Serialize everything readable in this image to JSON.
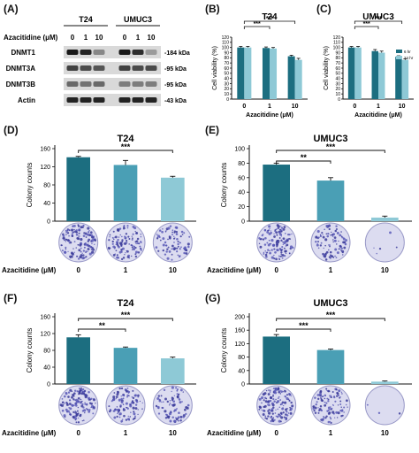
{
  "labels": {
    "a": "(A)",
    "b": "(B)",
    "c": "(C)",
    "d": "(D)",
    "e": "(E)",
    "f": "(F)",
    "g": "(G)"
  },
  "western": {
    "cell_lines": [
      "T24",
      "UMUC3"
    ],
    "dose_header": "Azacitidine (μM)",
    "doses": [
      "0",
      "1",
      "10",
      "0",
      "1",
      "10"
    ],
    "rows": [
      {
        "name": "DNMT1",
        "kda": "-184 kDa",
        "intensity": [
          0.95,
          0.9,
          0.4,
          0.95,
          0.85,
          0.3
        ]
      },
      {
        "name": "DNMT3A",
        "kda": "-95 kDa",
        "intensity": [
          0.75,
          0.7,
          0.65,
          0.75,
          0.7,
          0.7
        ]
      },
      {
        "name": "DNMT3B",
        "kda": "-95 kDa",
        "intensity": [
          0.55,
          0.5,
          0.55,
          0.45,
          0.45,
          0.45
        ]
      },
      {
        "name": "Actin",
        "kda": "-43 kDa",
        "intensity": [
          0.9,
          0.9,
          0.9,
          0.9,
          0.9,
          0.9
        ]
      }
    ]
  },
  "chart_data": [
    {
      "id": "B",
      "type": "bar",
      "title": "T24",
      "ylabel": "Cell viability (%)",
      "xlabel": "Azacitidine (μM)",
      "categories": [
        "0",
        "1",
        "10"
      ],
      "ylim": [
        0,
        120
      ],
      "yticks": [
        "0",
        "10",
        "20",
        "30",
        "40",
        "50",
        "60",
        "70",
        "80",
        "90",
        "100",
        "110",
        "120"
      ],
      "series": [
        {
          "values": [
            100,
            99,
            83
          ],
          "errors": [
            2,
            2,
            2
          ],
          "color": "#1c6e80"
        },
        {
          "values": [
            100,
            98,
            76
          ],
          "errors": [
            2,
            2,
            3
          ],
          "color": "#8ec9d6"
        }
      ],
      "significance": [
        "***",
        "***"
      ]
    },
    {
      "id": "C",
      "type": "bar",
      "title": "UMUC3",
      "ylabel": "Cell viability (%)",
      "xlabel": "Azacitidine (μM)",
      "categories": [
        "0",
        "1",
        "10"
      ],
      "ylim": [
        0,
        120
      ],
      "yticks": [
        "0",
        "10",
        "20",
        "30",
        "40",
        "50",
        "60",
        "70",
        "80",
        "90",
        "100",
        "110",
        "120"
      ],
      "legend": [
        "6 hr",
        "24 hr"
      ],
      "series": [
        {
          "name": "6 hr",
          "values": [
            100,
            93,
            82
          ],
          "errors": [
            2,
            3,
            2
          ],
          "color": "#1c6e80"
        },
        {
          "name": "24 hr",
          "values": [
            100,
            90,
            76
          ],
          "errors": [
            2,
            3,
            2
          ],
          "color": "#8ec9d6"
        }
      ],
      "significance": [
        "***",
        "***"
      ]
    },
    {
      "id": "D",
      "type": "bar",
      "title": "T24",
      "ylabel": "Colony counts",
      "categories": [
        "0",
        "1",
        "10"
      ],
      "ylim": [
        0,
        160
      ],
      "yticks": [
        "0",
        "40",
        "80",
        "120",
        "160"
      ],
      "values": [
        141,
        124,
        96
      ],
      "errors": [
        2,
        10,
        3
      ],
      "colors": [
        "#1c6e80",
        "#4a9fb5",
        "#8ec9d6"
      ],
      "significance": [
        {
          "from": 0,
          "to": 2,
          "label": "***"
        }
      ]
    },
    {
      "id": "E",
      "type": "bar",
      "title": "UMUC3",
      "ylabel": "Colony counts",
      "categories": [
        "0",
        "1",
        "10"
      ],
      "ylim": [
        0,
        100
      ],
      "yticks": [
        "0",
        "20",
        "40",
        "60",
        "80",
        "100"
      ],
      "values": [
        78,
        56,
        5
      ],
      "errors": [
        2,
        4,
        2
      ],
      "colors": [
        "#1c6e80",
        "#4a9fb5",
        "#8ec9d6"
      ],
      "significance": [
        {
          "from": 0,
          "to": 1,
          "label": "**"
        },
        {
          "from": 0,
          "to": 2,
          "label": "***"
        }
      ]
    },
    {
      "id": "F",
      "type": "bar",
      "title": "T24",
      "ylabel": "Colony counts",
      "categories": [
        "0",
        "1",
        "10"
      ],
      "ylim": [
        0,
        160
      ],
      "yticks": [
        "0",
        "40",
        "80",
        "120",
        "160"
      ],
      "values": [
        111,
        86,
        61
      ],
      "errors": [
        6,
        2,
        3
      ],
      "colors": [
        "#1c6e80",
        "#4a9fb5",
        "#8ec9d6"
      ],
      "significance": [
        {
          "from": 0,
          "to": 1,
          "label": "**"
        },
        {
          "from": 0,
          "to": 2,
          "label": "***"
        }
      ]
    },
    {
      "id": "G",
      "type": "bar",
      "title": "UMUC3",
      "ylabel": "Colony counts",
      "categories": [
        "0",
        "1",
        "10"
      ],
      "ylim": [
        0,
        200
      ],
      "yticks": [
        "0",
        "40",
        "80",
        "120",
        "160",
        "200"
      ],
      "values": [
        141,
        101,
        7
      ],
      "errors": [
        6,
        3,
        2
      ],
      "colors": [
        "#1c6e80",
        "#4a9fb5",
        "#8ec9d6"
      ],
      "significance": [
        {
          "from": 0,
          "to": 1,
          "label": "***"
        },
        {
          "from": 0,
          "to": 2,
          "label": "***"
        }
      ]
    }
  ],
  "colony_rows": [
    {
      "label": "Azacitidine (μM)",
      "doses": [
        "0",
        "1",
        "10"
      ],
      "density": [
        0.9,
        0.75,
        0.55
      ]
    },
    {
      "label": "Azacitidine (μM)",
      "doses": [
        "0",
        "1",
        "10"
      ],
      "density": [
        0.85,
        0.6,
        0.03
      ]
    },
    {
      "label": "Azacitidine (μM)",
      "doses": [
        "0",
        "1",
        "10"
      ],
      "density": [
        0.85,
        0.7,
        0.5
      ]
    },
    {
      "label": "Azacitidine (μM)",
      "doses": [
        "0",
        "1",
        "10"
      ],
      "density": [
        0.95,
        0.7,
        0.02
      ]
    }
  ]
}
